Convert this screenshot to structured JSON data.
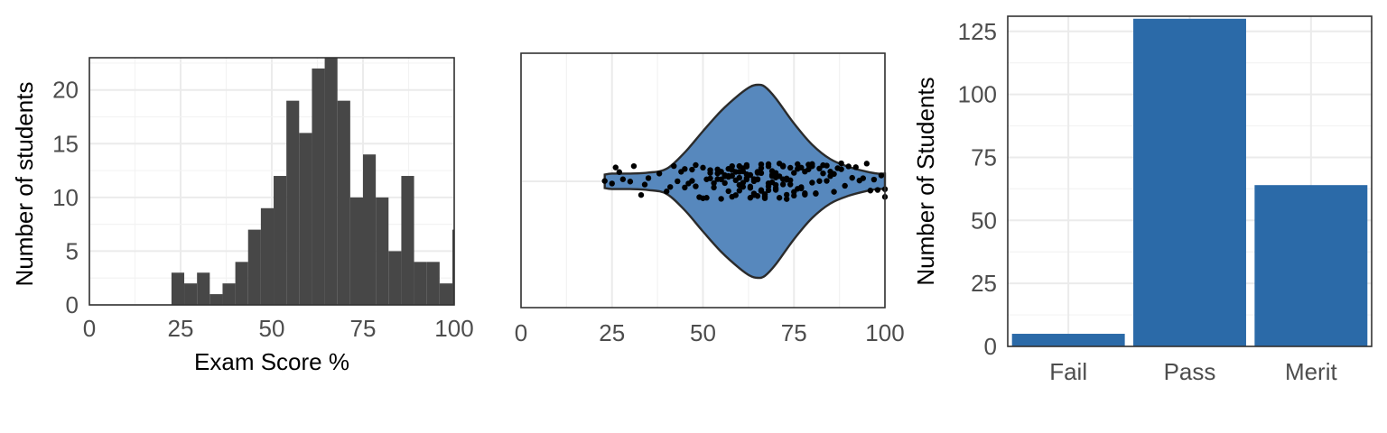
{
  "chart_data": [
    {
      "type": "bar",
      "subtype": "histogram",
      "xlabel": "Exam Score %",
      "ylabel": "Number of students",
      "xlim": [
        0,
        100
      ],
      "ylim": [
        0,
        23
      ],
      "xticks": [
        "0",
        "25",
        "50",
        "75",
        "100"
      ],
      "yticks": [
        "0",
        "5",
        "10",
        "15",
        "20"
      ],
      "bin_width": 3.5,
      "bin_start": 22.5,
      "values": [
        3,
        2,
        3,
        1,
        2,
        4,
        7,
        9,
        12,
        19,
        16,
        22,
        23,
        19,
        10,
        14,
        10,
        5,
        12,
        4,
        4,
        2,
        7
      ],
      "bar_color": "#474747",
      "grid": true
    },
    {
      "type": "violin",
      "xlabel": "",
      "ylabel": "",
      "xlim": [
        0,
        100
      ],
      "xticks": [
        "0",
        "25",
        "50",
        "75",
        "100"
      ],
      "density": [
        [
          23,
          0.07
        ],
        [
          25,
          0.08
        ],
        [
          30,
          0.08
        ],
        [
          35,
          0.09
        ],
        [
          40,
          0.13
        ],
        [
          45,
          0.3
        ],
        [
          50,
          0.52
        ],
        [
          55,
          0.73
        ],
        [
          60,
          0.9
        ],
        [
          63,
          0.98
        ],
        [
          65,
          1.0
        ],
        [
          67,
          0.98
        ],
        [
          70,
          0.86
        ],
        [
          75,
          0.6
        ],
        [
          80,
          0.38
        ],
        [
          85,
          0.23
        ],
        [
          90,
          0.15
        ],
        [
          95,
          0.1
        ],
        [
          98,
          0.08
        ],
        [
          100,
          0.08
        ]
      ],
      "points_x": [
        23,
        25,
        26,
        27,
        28,
        30,
        31,
        33,
        34,
        35,
        38,
        40,
        41,
        42,
        43,
        44,
        45,
        45,
        46,
        47,
        47,
        48,
        49,
        50,
        50,
        51,
        51,
        52,
        52,
        53,
        53,
        54,
        54,
        55,
        55,
        55,
        56,
        56,
        57,
        57,
        57,
        58,
        58,
        58,
        59,
        59,
        59,
        60,
        60,
        60,
        60,
        61,
        61,
        61,
        62,
        62,
        62,
        62,
        63,
        63,
        63,
        63,
        64,
        64,
        64,
        64,
        65,
        65,
        65,
        65,
        66,
        66,
        66,
        66,
        67,
        67,
        67,
        67,
        68,
        68,
        68,
        68,
        69,
        69,
        69,
        70,
        70,
        70,
        70,
        71,
        71,
        71,
        72,
        72,
        72,
        73,
        73,
        73,
        74,
        74,
        74,
        75,
        75,
        75,
        76,
        76,
        76,
        77,
        77,
        78,
        78,
        78,
        79,
        79,
        80,
        80,
        80,
        81,
        81,
        82,
        82,
        83,
        83,
        84,
        84,
        85,
        85,
        86,
        86,
        87,
        88,
        88,
        89,
        90,
        91,
        92,
        93,
        94,
        95,
        96,
        97,
        98,
        99,
        100,
        100,
        48,
        52,
        56,
        60,
        64,
        68,
        72,
        58,
        62,
        66,
        70,
        54,
        57,
        61,
        65,
        69,
        73,
        77
      ],
      "fill_color": "#5788bd",
      "point_color": "#000000",
      "grid": true
    },
    {
      "type": "bar",
      "categories": [
        "Fail",
        "Pass",
        "Merit"
      ],
      "values": [
        5,
        130,
        64
      ],
      "xlabel": "",
      "ylabel": "Number of Students",
      "ylim": [
        0,
        131
      ],
      "yticks": [
        "0",
        "25",
        "50",
        "75",
        "100",
        "125"
      ],
      "bar_color": "#2b6aa8",
      "grid": true
    }
  ]
}
